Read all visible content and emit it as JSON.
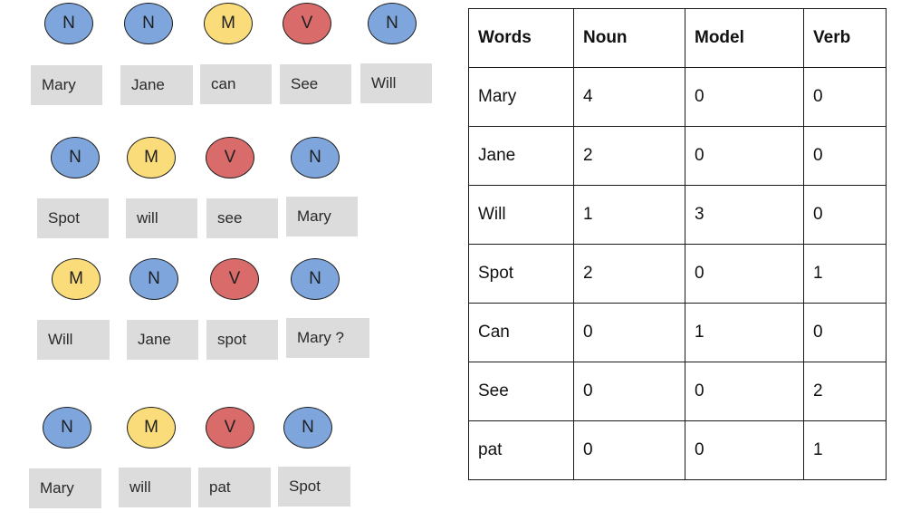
{
  "sentences": [
    {
      "tags": [
        "N",
        "N",
        "M",
        "V",
        "N"
      ],
      "words": [
        "Mary",
        "Jane",
        "can",
        "See",
        "Will"
      ]
    },
    {
      "tags": [
        "N",
        "M",
        "V",
        "N"
      ],
      "words": [
        "Spot",
        "will",
        "see",
        "Mary"
      ]
    },
    {
      "tags": [
        "M",
        "N",
        "V",
        "N"
      ],
      "words": [
        "Will",
        "Jane",
        "spot",
        "Mary ?"
      ]
    },
    {
      "tags": [
        "N",
        "M",
        "V",
        "N"
      ],
      "words": [
        "Mary",
        "will",
        "pat",
        "Spot"
      ]
    }
  ],
  "table": {
    "headers": [
      "Words",
      "Noun",
      "Model",
      "Verb"
    ],
    "rows": [
      [
        "Mary",
        "4",
        "0",
        "0"
      ],
      [
        "Jane",
        "2",
        "0",
        "0"
      ],
      [
        "Will",
        "1",
        "3",
        "0"
      ],
      [
        "Spot",
        "2",
        "0",
        "1"
      ],
      [
        "Can",
        "0",
        "1",
        "0"
      ],
      [
        "See",
        "0",
        "0",
        "2"
      ],
      [
        "pat",
        "0",
        "0",
        "1"
      ]
    ]
  },
  "colors": {
    "noun": "#7ea6dc",
    "model": "#fadc7a",
    "verb": "#d96b6b",
    "word_box": "#dcdcdc"
  }
}
